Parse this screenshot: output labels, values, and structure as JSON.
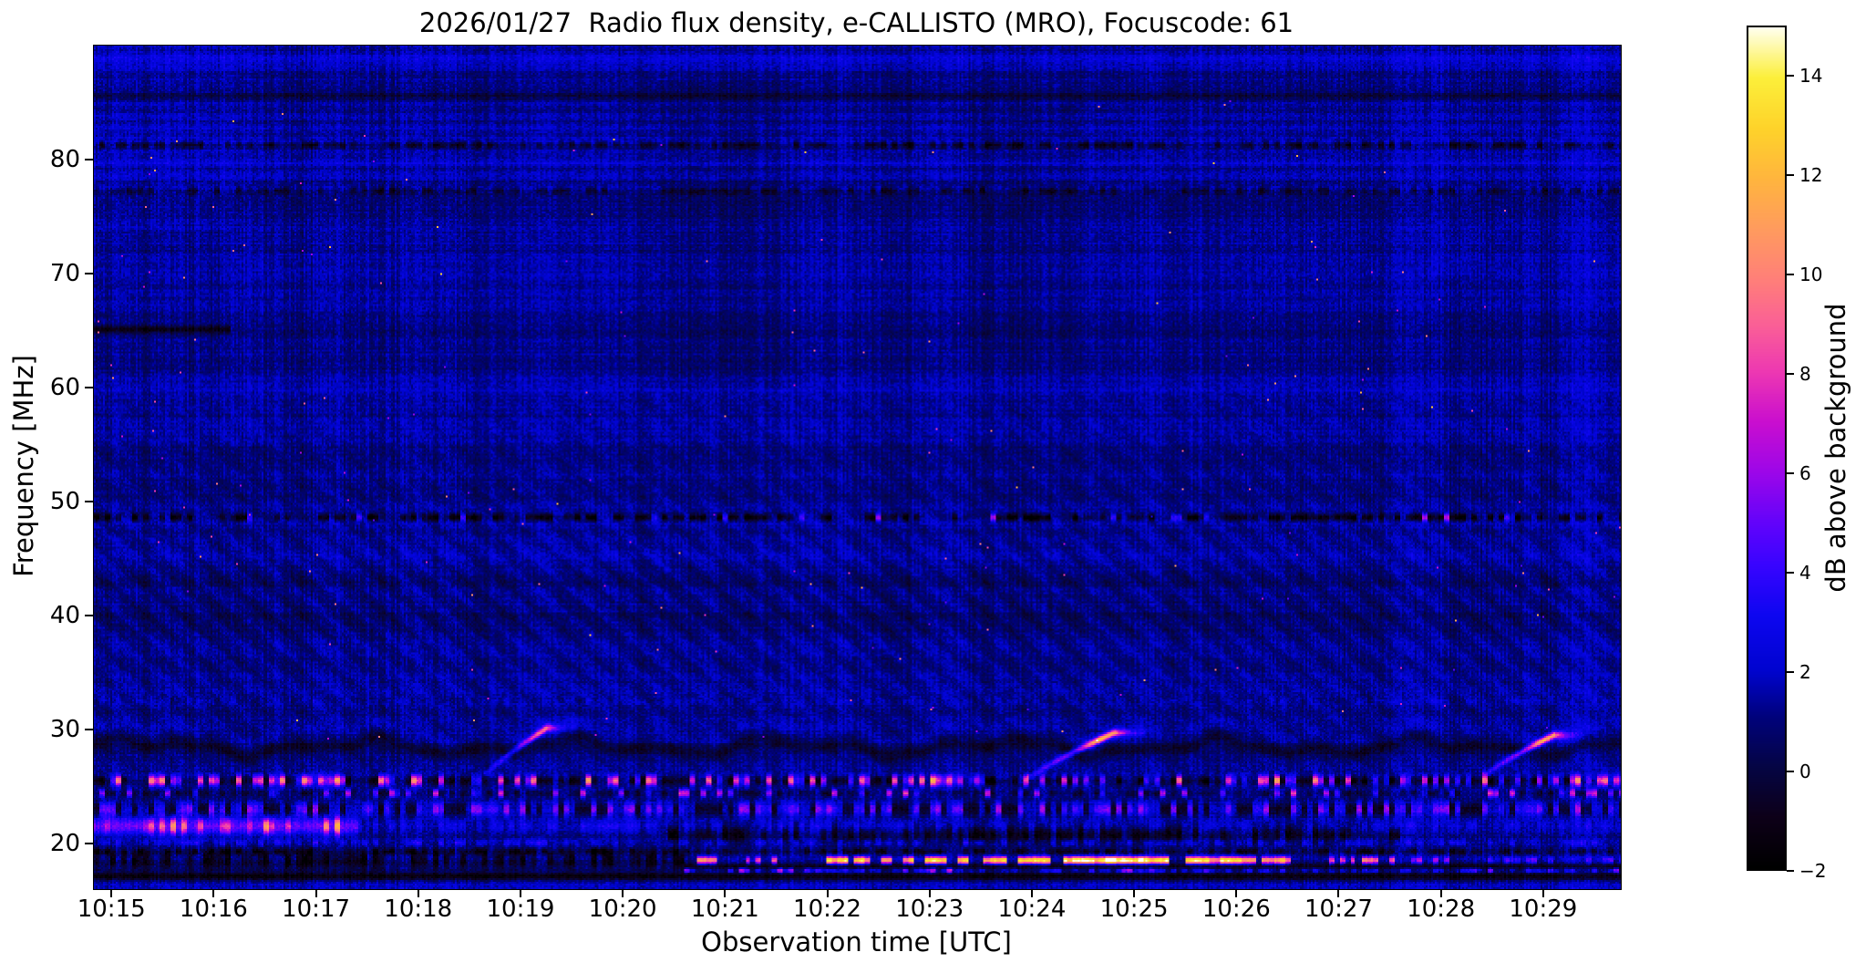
{
  "chart_data": {
    "type": "heatmap",
    "subtype": "solar-radio-spectrogram",
    "title": "2026/01/27  Radio flux density, e-CALLISTO (MRO), Focuscode: 61",
    "xlabel": "Observation time [UTC]",
    "ylabel": "Frequency [MHz]",
    "colorbar_label": "dB above background",
    "x_tick_labels": [
      "10:15",
      "10:16",
      "10:17",
      "10:18",
      "10:19",
      "10:20",
      "10:21",
      "10:22",
      "10:23",
      "10:24",
      "10:25",
      "10:26",
      "10:27",
      "10:28",
      "10:29"
    ],
    "x_tick_minutes": [
      0,
      1,
      2,
      3,
      4,
      5,
      6,
      7,
      8,
      9,
      10,
      11,
      12,
      13,
      14
    ],
    "t_min": -0.18,
    "t_max": 14.75,
    "f_min": 16.1,
    "f_max": 90.1,
    "y_ticks": [
      20,
      30,
      40,
      50,
      60,
      70,
      80
    ],
    "value_range": [
      -2,
      15
    ],
    "background_db": 1.25,
    "colorbar_ticks": [
      {
        "v": 14,
        "label": "14"
      },
      {
        "v": 12,
        "label": "12"
      },
      {
        "v": 10,
        "label": "10"
      },
      {
        "v": 8,
        "label": "8"
      },
      {
        "v": 6,
        "label": "6"
      },
      {
        "v": 4,
        "label": "4"
      },
      {
        "v": 2,
        "label": "2"
      },
      {
        "v": 0,
        "label": "0"
      },
      {
        "v": -2,
        "label": "−2"
      }
    ],
    "colormap_stops": [
      [
        0.0,
        "#000000"
      ],
      [
        0.06,
        "#0d0018"
      ],
      [
        0.12,
        "#050544"
      ],
      [
        0.18,
        "#00027c"
      ],
      [
        0.235,
        "#0004cf"
      ],
      [
        0.3,
        "#0d06f0"
      ],
      [
        0.36,
        "#3804ff"
      ],
      [
        0.41,
        "#6203fb"
      ],
      [
        0.47,
        "#9c06e9"
      ],
      [
        0.53,
        "#c90ecf"
      ],
      [
        0.59,
        "#ed38b2"
      ],
      [
        0.645,
        "#fa5f97"
      ],
      [
        0.7,
        "#ff7f79"
      ],
      [
        0.76,
        "#ff9b5e"
      ],
      [
        0.82,
        "#ffb53e"
      ],
      [
        0.88,
        "#fed32a"
      ],
      [
        0.94,
        "#fcef3a"
      ],
      [
        1.0,
        "#fffff0"
      ]
    ],
    "noise": {
      "pixel": 1.15,
      "column": 0.9,
      "column_block": 0.5,
      "row_random": 0.22
    },
    "bands": [
      {
        "f": 88.6,
        "hw": 0.5,
        "dv": 0.7
      },
      {
        "f": 85.8,
        "hw": 0.4,
        "dv": -1.3
      },
      {
        "f": 83.9,
        "hw": 0.5,
        "dv": 0.6
      },
      {
        "f": 81.4,
        "hw": 0.35,
        "dv": -1.9,
        "dash": 1
      },
      {
        "f": 79.9,
        "hw": 0.45,
        "dv": 0.7
      },
      {
        "f": 77.4,
        "hw": 0.35,
        "dv": -1.6,
        "dash": 1
      },
      {
        "f": 73.2,
        "hw": 0.9,
        "dv": 0.45
      },
      {
        "f": 65.2,
        "hw": 0.3,
        "dv": -2.2,
        "t1": 1.15
      },
      {
        "f": 60.6,
        "hw": 0.9,
        "dv": 0.4
      },
      {
        "f": 48.7,
        "hw": 0.33,
        "dv": -2.7,
        "dash": 1,
        "sparkle": 0.12,
        "samp": 0.55
      },
      {
        "f": 32.6,
        "hw": 0.28,
        "dv": 0.9,
        "dash": 1
      },
      {
        "f": 25.6,
        "hw": 0.45,
        "dv": -2.1,
        "dash": 1,
        "sparkle": 0.42,
        "samp": 1.0
      },
      {
        "f": 24.5,
        "hw": 0.35,
        "dv": -1.3,
        "dash": 1,
        "sparkle": 0.18,
        "samp": 0.7
      },
      {
        "f": 23.1,
        "hw": 0.6,
        "dv": 0,
        "mix": 1
      },
      {
        "f": 21.6,
        "hw": 0.75,
        "dv": 3.6,
        "t1": 2.4,
        "sparkle": 0.28,
        "samp": 0.6
      },
      {
        "f": 21.6,
        "hw": 0.6,
        "dv": 1.2,
        "t0": 2.4,
        "dash": 1
      },
      {
        "f": 20.9,
        "hw": 0.8,
        "dv": -2.0,
        "t0": 5.4,
        "t1": 12.6,
        "dash": 1
      },
      {
        "f": 20.15,
        "hw": 0.3,
        "dv": 1.6,
        "dash": 1
      },
      {
        "f": 19.4,
        "hw": 0.3,
        "dv": -1.8,
        "dash": 1
      },
      {
        "f": 18.7,
        "hw": 0.8,
        "dv": -2.2,
        "t1": 5.65,
        "dash": 1
      },
      {
        "f": 18.1,
        "hw": 0.22,
        "dv": -2.0,
        "t0": 5.6
      },
      {
        "f": 17.72,
        "hw": 0.2,
        "dv": 2.3,
        "dash": 1,
        "t0": 5.6,
        "sparkle": 0.15,
        "samp": 0.5
      },
      {
        "f": 17.25,
        "hw": 0.35,
        "dv": -2.3
      },
      {
        "f": 16.5,
        "hw": 0.4,
        "dv": 0.8
      }
    ],
    "bright_line": {
      "f": 18.62,
      "hw": 0.32,
      "segments": [
        {
          "t0": 5.72,
          "t1": 6.12,
          "v": 10.5,
          "dash": 0.45
        },
        {
          "t0": 6.2,
          "t1": 6.5,
          "v": 7.0,
          "dash": 0.55
        },
        {
          "t0": 6.88,
          "t1": 8.42,
          "v": 11.0,
          "dash": 0.4
        },
        {
          "t0": 8.52,
          "t1": 9.18,
          "v": 11.0,
          "dash": 0.2
        },
        {
          "t0": 9.3,
          "t1": 10.34,
          "v": 12.0,
          "dash": 0,
          "core": 14.0
        },
        {
          "t0": 10.5,
          "t1": 11.18,
          "v": 11.5,
          "dash": 0
        },
        {
          "t0": 11.24,
          "t1": 11.52,
          "v": 10.0,
          "dash": 0.2
        },
        {
          "t0": 11.9,
          "t1": 12.14,
          "v": 6.5,
          "dash": 0.3
        },
        {
          "t0": 12.2,
          "t1": 12.62,
          "v": 9.0,
          "dash": 0.15
        },
        {
          "t0": 12.7,
          "t1": 13.12,
          "v": 4.5,
          "dash": 0.4
        },
        {
          "t0": 13.3,
          "t1": 14.75,
          "v": 3.0,
          "dash": 0.6
        }
      ]
    },
    "bursts": [
      {
        "t0": 3.68,
        "t1": 4.25,
        "f0": 26.3,
        "f1": 30.2,
        "v": 6.5,
        "peak": 1.5
      },
      {
        "t0": 9.0,
        "t1": 9.8,
        "f0": 26.0,
        "f1": 29.8,
        "v": 8.0,
        "peak": 3.5
      },
      {
        "t0": 13.45,
        "t1": 14.1,
        "f0": 26.2,
        "f1": 29.6,
        "v": 8.5,
        "peak": 2.5
      }
    ],
    "blocks": [
      {
        "t0": -0.2,
        "t1": 1.15,
        "flo": 74,
        "fhi": 90.2,
        "dv": 0.35
      },
      {
        "t0": 1.05,
        "t1": 1.5,
        "flo": 55,
        "fhi": 90.2,
        "dv": 0.3
      },
      {
        "t0": 5.3,
        "t1": 6.7,
        "flo": 60,
        "fhi": 87,
        "dv": -0.3
      },
      {
        "t0": 8.2,
        "t1": 9.4,
        "flo": 63,
        "fhi": 85,
        "dv": -0.2
      },
      {
        "t0": 12.9,
        "t1": 13.4,
        "flo": 70,
        "fhi": 90,
        "dv": 0.25
      },
      {
        "t0": 14.15,
        "t1": 14.75,
        "flo": 16,
        "fhi": 90.2,
        "dv": 0.35
      }
    ],
    "waves": {
      "f_lo": 26.2,
      "f_hi": 59.5,
      "amp_base": 0.12,
      "amp_peak": 0.3,
      "f_center": 41,
      "f_width": 11,
      "t_coef": 16,
      "f_coef": 2.2
    },
    "ripple": {
      "f_center": 28.55,
      "dark_amp": 1.3,
      "dark_hw": 0.58,
      "bright_amp": 0.5,
      "bright_offset": 1.35,
      "bright_hw": 0.6
    }
  }
}
